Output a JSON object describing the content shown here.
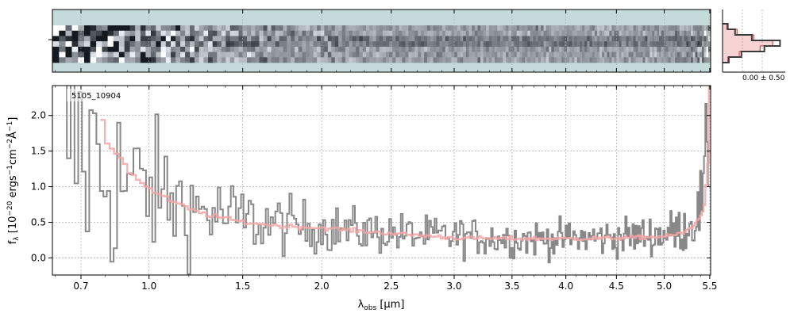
{
  "chart_data": [
    {
      "panel": "spectrum-2d",
      "type": "heatmap",
      "colormap": "bone_r",
      "background_color": "#c5dbdb",
      "trace_rows": 7
    },
    {
      "panel": "profile",
      "type": "line",
      "profile_values": [
        0.05,
        0.12,
        0.28,
        0.55,
        0.4,
        0.18,
        0.06
      ],
      "model_values": [
        0.04,
        0.14,
        0.3,
        0.48,
        0.36,
        0.16,
        0.05
      ],
      "tick_label": "0.00 ± 0.50",
      "line_color": "#3c3c3c",
      "model_color": "#e05050"
    },
    {
      "panel": "spectrum-1d",
      "type": "line",
      "label": "5105_10904",
      "xlabel_main": "λ",
      "xlabel_sub": "obs",
      "xlabel_unit": " [μm]",
      "ylabel": "f",
      "ylabel_sub": "λ",
      "ylabel_unit_a": " [10",
      "ylabel_exp1": "−20",
      "ylabel_unit_b": " ergs",
      "ylabel_exp2": "−1",
      "ylabel_unit_c": "cm",
      "ylabel_exp3": "−2",
      "ylabel_unit_d": "Å",
      "ylabel_exp4": "−1",
      "ylabel_unit_e": "]",
      "xlim": [
        0.59,
        5.51
      ],
      "ylim": [
        -0.24,
        2.42
      ],
      "x_scale": "sqrt",
      "xticks": [
        0.7,
        1.0,
        1.5,
        2.0,
        2.5,
        3.0,
        3.5,
        4.0,
        4.5,
        5.0,
        5.5
      ],
      "xtick_labels": [
        "0.7",
        "1.0",
        "1.5",
        "2.0",
        "2.5",
        "3.0",
        "3.5",
        "4.0",
        "4.5",
        "5.0",
        "5.5"
      ],
      "yticks": [
        0.0,
        0.5,
        1.0,
        1.5,
        2.0
      ],
      "ytick_labels": [
        "0.0",
        "0.5",
        "1.0",
        "1.5",
        "2.0"
      ],
      "grid": true,
      "series": [
        {
          "type": "step",
          "color": "#888888",
          "x": [
            0.6,
            0.7,
            0.8,
            0.9,
            1.0,
            1.2,
            1.4,
            1.6,
            1.8,
            2.0,
            2.25,
            2.5,
            2.75,
            3.0,
            3.25,
            3.5,
            3.75,
            4.0,
            4.25,
            4.5,
            4.75,
            5.0,
            5.2,
            5.35,
            5.42,
            5.48
          ],
          "y": [
            2.0,
            1.5,
            1.2,
            1.0,
            0.95,
            0.7,
            0.58,
            0.5,
            0.45,
            0.42,
            0.38,
            0.35,
            0.31,
            0.3,
            0.29,
            0.27,
            0.27,
            0.27,
            0.28,
            0.29,
            0.31,
            0.34,
            0.4,
            0.55,
            0.9,
            1.6
          ],
          "noise": [
            3.0,
            2.6,
            2.0,
            1.6,
            1.3,
            0.9,
            0.7,
            0.6,
            0.5,
            0.45,
            0.4,
            0.38,
            0.36,
            0.35,
            0.34,
            0.33,
            0.33,
            0.33,
            0.33,
            0.34,
            0.35,
            0.38,
            0.42,
            0.5,
            0.7,
            1.2
          ]
        },
        {
          "type": "step",
          "color": "#f4a6a6",
          "x": [
            0.78,
            0.8,
            0.85,
            0.9,
            1.0,
            1.1,
            1.2,
            1.3,
            1.5,
            1.7,
            2.0,
            2.3,
            2.6,
            3.0,
            3.5,
            4.0,
            4.5,
            5.0,
            5.2,
            5.3,
            5.38,
            5.43,
            5.47,
            5.49
          ],
          "y": [
            1.95,
            1.6,
            1.45,
            1.2,
            0.95,
            0.8,
            0.68,
            0.6,
            0.5,
            0.45,
            0.42,
            0.37,
            0.33,
            0.28,
            0.27,
            0.27,
            0.28,
            0.3,
            0.35,
            0.45,
            0.55,
            0.75,
            1.3,
            2.4
          ]
        }
      ]
    }
  ]
}
